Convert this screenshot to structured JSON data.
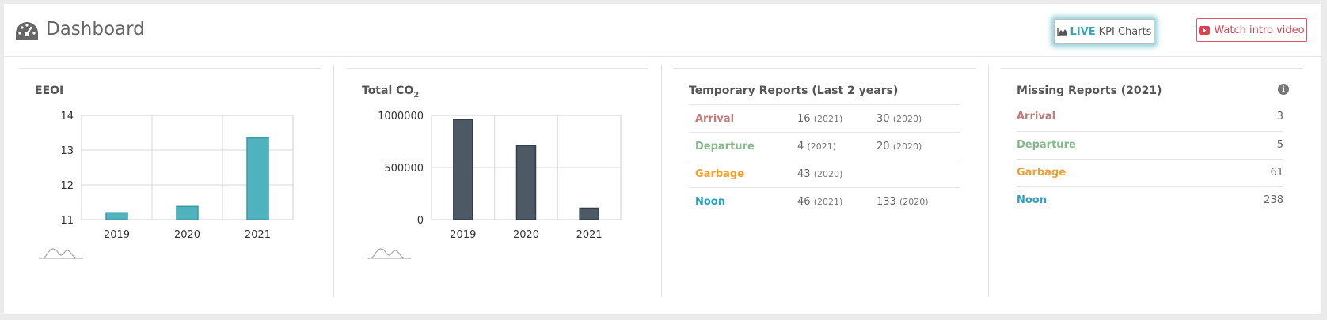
{
  "header": {
    "title": "Dashboard",
    "live_button": {
      "live": "LIVE",
      "label": "KPI Charts"
    },
    "video_button": {
      "label": "Watch intro video"
    }
  },
  "colors": {
    "arrival": "#c27b7b",
    "departure": "#86b98a",
    "garbage": "#f0a030",
    "noon": "#2aa0c5",
    "eeoi_bar": "#4fb3bf",
    "co2_bar": "#4d5a66"
  },
  "eeoi": {
    "title": "EEOI",
    "chart_data": {
      "type": "bar",
      "categories": [
        "2019",
        "2020",
        "2021"
      ],
      "values": [
        11.2,
        11.38,
        13.35
      ],
      "yticks": [
        "11",
        "12",
        "13",
        "14"
      ],
      "ylim": [
        11,
        14
      ],
      "grid": true
    }
  },
  "co2": {
    "title": "Total CO",
    "title_sub": "2",
    "chart_data": {
      "type": "bar",
      "categories": [
        "2019",
        "2020",
        "2021"
      ],
      "values": [
        960000,
        710000,
        110000
      ],
      "yticks": [
        "0",
        "500000",
        "1000000"
      ],
      "ylim": [
        0,
        1000000
      ],
      "grid": true
    }
  },
  "temporary_reports": {
    "title": "Temporary Reports (Last 2 years)",
    "rows": [
      {
        "label": "Arrival",
        "v1": "16",
        "y1": "(2021)",
        "v2": "30",
        "y2": "(2020)"
      },
      {
        "label": "Departure",
        "v1": "4",
        "y1": "(2021)",
        "v2": "20",
        "y2": "(2020)"
      },
      {
        "label": "Garbage",
        "v1": "43",
        "y1": "(2020)",
        "v2": "",
        "y2": ""
      },
      {
        "label": "Noon",
        "v1": "46",
        "y1": "(2021)",
        "v2": "133",
        "y2": "(2020)"
      }
    ]
  },
  "missing_reports": {
    "title": "Missing Reports (2021)",
    "info": "i",
    "rows": [
      {
        "label": "Arrival",
        "count": "3"
      },
      {
        "label": "Departure",
        "count": "5"
      },
      {
        "label": "Garbage",
        "count": "61"
      },
      {
        "label": "Noon",
        "count": "238"
      }
    ]
  }
}
